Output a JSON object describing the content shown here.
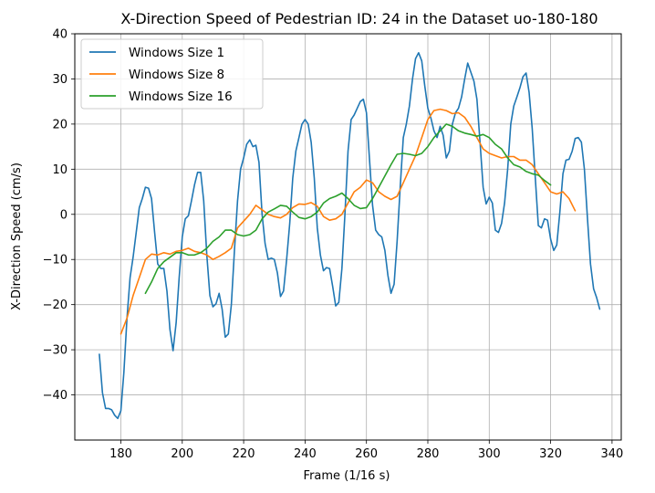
{
  "chart_data": {
    "type": "line",
    "title": "X-Direction Speed of Pedestrian ID: 24 in the Dataset uo-180-180",
    "xlabel": "Frame (1/16 s)",
    "ylabel": "X-Direction Speed (cm/s)",
    "xlim": [
      165,
      343
    ],
    "ylim": [
      -50,
      40
    ],
    "xticks": [
      180,
      200,
      220,
      240,
      260,
      280,
      300,
      320,
      340
    ],
    "yticks": [
      -40,
      -30,
      -20,
      -10,
      0,
      10,
      20,
      30,
      40
    ],
    "grid": true,
    "legend": "top-left",
    "series": [
      {
        "name": "Windows Size 1",
        "color": "#1f77b4",
        "points": [
          [
            173,
            -31
          ],
          [
            174,
            -39.5
          ],
          [
            175,
            -43
          ],
          [
            176,
            -43
          ],
          [
            177,
            -43.3
          ],
          [
            178,
            -44.5
          ],
          [
            179,
            -45.2
          ],
          [
            180,
            -43.5
          ],
          [
            181,
            -35
          ],
          [
            182,
            -23
          ],
          [
            183,
            -14
          ],
          [
            184,
            -9.5
          ],
          [
            185,
            -4
          ],
          [
            186,
            1.5
          ],
          [
            187,
            3.5
          ],
          [
            188,
            6
          ],
          [
            189,
            5.8
          ],
          [
            190,
            3.5
          ],
          [
            191,
            -4
          ],
          [
            192,
            -11
          ],
          [
            193,
            -12
          ],
          [
            194,
            -12
          ],
          [
            195,
            -17
          ],
          [
            196,
            -25.5
          ],
          [
            197,
            -30.2
          ],
          [
            198,
            -24
          ],
          [
            199,
            -14
          ],
          [
            200,
            -5
          ],
          [
            201,
            -1
          ],
          [
            202,
            -0.3
          ],
          [
            203,
            3
          ],
          [
            204,
            6.5
          ],
          [
            205,
            9.3
          ],
          [
            206,
            9.3
          ],
          [
            207,
            3
          ],
          [
            208,
            -9
          ],
          [
            209,
            -18
          ],
          [
            210,
            -20.5
          ],
          [
            211,
            -19.8
          ],
          [
            212,
            -17.5
          ],
          [
            213,
            -21
          ],
          [
            214,
            -27.2
          ],
          [
            215,
            -26.5
          ],
          [
            216,
            -20
          ],
          [
            217,
            -8
          ],
          [
            218,
            3
          ],
          [
            219,
            10
          ],
          [
            220,
            12.5
          ],
          [
            221,
            15.5
          ],
          [
            222,
            16.5
          ],
          [
            223,
            15
          ],
          [
            224,
            15.3
          ],
          [
            225,
            11.5
          ],
          [
            226,
            0
          ],
          [
            227,
            -6.5
          ],
          [
            228,
            -10
          ],
          [
            229,
            -9.7
          ],
          [
            230,
            -10
          ],
          [
            231,
            -13
          ],
          [
            232,
            -18.2
          ],
          [
            233,
            -17
          ],
          [
            234,
            -10
          ],
          [
            235,
            -2
          ],
          [
            236,
            8
          ],
          [
            237,
            14
          ],
          [
            238,
            17
          ],
          [
            239,
            20
          ],
          [
            240,
            21
          ],
          [
            241,
            20
          ],
          [
            242,
            16
          ],
          [
            243,
            8
          ],
          [
            244,
            -3
          ],
          [
            245,
            -9
          ],
          [
            246,
            -12.5
          ],
          [
            247,
            -11.8
          ],
          [
            248,
            -12
          ],
          [
            249,
            -16
          ],
          [
            250,
            -20.3
          ],
          [
            251,
            -19.5
          ],
          [
            252,
            -12
          ],
          [
            253,
            0
          ],
          [
            254,
            14
          ],
          [
            255,
            21
          ],
          [
            256,
            22
          ],
          [
            257,
            23.5
          ],
          [
            258,
            25
          ],
          [
            259,
            25.5
          ],
          [
            260,
            22.5
          ],
          [
            261,
            12
          ],
          [
            262,
            2
          ],
          [
            263,
            -3.5
          ],
          [
            264,
            -4.5
          ],
          [
            265,
            -5
          ],
          [
            266,
            -8
          ],
          [
            267,
            -13.5
          ],
          [
            268,
            -17.5
          ],
          [
            269,
            -15.5
          ],
          [
            270,
            -6
          ],
          [
            271,
            6
          ],
          [
            272,
            17
          ],
          [
            273,
            20
          ],
          [
            274,
            24
          ],
          [
            275,
            30
          ],
          [
            276,
            34.5
          ],
          [
            277,
            35.8
          ],
          [
            278,
            34
          ],
          [
            279,
            28.5
          ],
          [
            280,
            23.5
          ],
          [
            281,
            21.3
          ],
          [
            282,
            18.5
          ],
          [
            283,
            17
          ],
          [
            284,
            19.5
          ],
          [
            285,
            17.5
          ],
          [
            286,
            12.5
          ],
          [
            287,
            14
          ],
          [
            288,
            20
          ],
          [
            289,
            22.5
          ],
          [
            290,
            23.5
          ],
          [
            291,
            26
          ],
          [
            292,
            30
          ],
          [
            293,
            33.5
          ],
          [
            294,
            31.5
          ],
          [
            295,
            29.5
          ],
          [
            296,
            25.5
          ],
          [
            297,
            16
          ],
          [
            298,
            6
          ],
          [
            299,
            2.3
          ],
          [
            300,
            3.8
          ],
          [
            301,
            2.5
          ],
          [
            302,
            -3.5
          ],
          [
            303,
            -4
          ],
          [
            304,
            -2
          ],
          [
            305,
            2.5
          ],
          [
            306,
            10
          ],
          [
            307,
            20
          ],
          [
            308,
            24
          ],
          [
            309,
            26
          ],
          [
            310,
            28
          ],
          [
            311,
            30.5
          ],
          [
            312,
            31.3
          ],
          [
            313,
            27
          ],
          [
            314,
            19
          ],
          [
            315,
            8
          ],
          [
            316,
            -2.5
          ],
          [
            317,
            -3
          ],
          [
            318,
            -1
          ],
          [
            319,
            -1.3
          ],
          [
            320,
            -5.5
          ],
          [
            321,
            -8
          ],
          [
            322,
            -6.8
          ],
          [
            323,
            0.5
          ],
          [
            324,
            9
          ],
          [
            325,
            12
          ],
          [
            326,
            12.2
          ],
          [
            327,
            14
          ],
          [
            328,
            16.8
          ],
          [
            329,
            17
          ],
          [
            330,
            16
          ],
          [
            331,
            10
          ],
          [
            332,
            -1
          ],
          [
            333,
            -11
          ],
          [
            334,
            -16.5
          ],
          [
            335,
            -18.5
          ],
          [
            336,
            -21
          ]
        ]
      },
      {
        "name": "Windows Size 8",
        "color": "#ff7f0e",
        "points": [
          [
            180,
            -26.5
          ],
          [
            182,
            -23
          ],
          [
            184,
            -18
          ],
          [
            186,
            -14
          ],
          [
            188,
            -10
          ],
          [
            190,
            -8.8
          ],
          [
            192,
            -9
          ],
          [
            194,
            -8.5
          ],
          [
            196,
            -8.8
          ],
          [
            198,
            -8.2
          ],
          [
            200,
            -8
          ],
          [
            202,
            -7.5
          ],
          [
            204,
            -8.2
          ],
          [
            206,
            -8.5
          ],
          [
            208,
            -9
          ],
          [
            210,
            -10
          ],
          [
            212,
            -9.3
          ],
          [
            214,
            -8.5
          ],
          [
            216,
            -7.5
          ],
          [
            218,
            -3
          ],
          [
            220,
            -1.5
          ],
          [
            222,
            0
          ],
          [
            224,
            2
          ],
          [
            226,
            1
          ],
          [
            228,
            0
          ],
          [
            230,
            -0.5
          ],
          [
            232,
            -0.8
          ],
          [
            234,
            0
          ],
          [
            236,
            1.5
          ],
          [
            238,
            2.3
          ],
          [
            240,
            2.2
          ],
          [
            242,
            2.6
          ],
          [
            244,
            1.8
          ],
          [
            246,
            -0.5
          ],
          [
            248,
            -1.3
          ],
          [
            250,
            -1
          ],
          [
            252,
            0
          ],
          [
            254,
            2.5
          ],
          [
            256,
            5
          ],
          [
            258,
            6
          ],
          [
            260,
            7.6
          ],
          [
            262,
            7
          ],
          [
            264,
            5
          ],
          [
            266,
            4
          ],
          [
            268,
            3.3
          ],
          [
            270,
            4
          ],
          [
            272,
            7
          ],
          [
            274,
            10
          ],
          [
            276,
            13
          ],
          [
            278,
            17
          ],
          [
            280,
            21
          ],
          [
            282,
            23
          ],
          [
            284,
            23.3
          ],
          [
            286,
            23
          ],
          [
            288,
            22.3
          ],
          [
            290,
            22.5
          ],
          [
            292,
            21.5
          ],
          [
            294,
            19.5
          ],
          [
            296,
            17
          ],
          [
            298,
            14.5
          ],
          [
            300,
            13.5
          ],
          [
            302,
            13
          ],
          [
            304,
            12.5
          ],
          [
            306,
            12.8
          ],
          [
            308,
            12.8
          ],
          [
            310,
            12
          ],
          [
            312,
            12
          ],
          [
            314,
            11
          ],
          [
            316,
            9
          ],
          [
            318,
            7
          ],
          [
            320,
            5
          ],
          [
            322,
            4.5
          ],
          [
            324,
            5
          ],
          [
            326,
            3.5
          ],
          [
            328,
            0.8
          ]
        ]
      },
      {
        "name": "Windows Size 16",
        "color": "#2ca02c",
        "points": [
          [
            188,
            -17.5
          ],
          [
            190,
            -15
          ],
          [
            192,
            -12
          ],
          [
            194,
            -10.5
          ],
          [
            196,
            -9.5
          ],
          [
            198,
            -8.5
          ],
          [
            200,
            -8.5
          ],
          [
            202,
            -9
          ],
          [
            204,
            -9
          ],
          [
            206,
            -8.5
          ],
          [
            208,
            -7.5
          ],
          [
            210,
            -6
          ],
          [
            212,
            -5
          ],
          [
            214,
            -3.5
          ],
          [
            216,
            -3.5
          ],
          [
            218,
            -4.5
          ],
          [
            220,
            -4.8
          ],
          [
            222,
            -4.5
          ],
          [
            224,
            -3.5
          ],
          [
            226,
            -1
          ],
          [
            228,
            0.5
          ],
          [
            230,
            1.2
          ],
          [
            232,
            2
          ],
          [
            234,
            1.8
          ],
          [
            236,
            0.5
          ],
          [
            238,
            -0.7
          ],
          [
            240,
            -1
          ],
          [
            242,
            -0.5
          ],
          [
            244,
            0.5
          ],
          [
            246,
            2.5
          ],
          [
            248,
            3.5
          ],
          [
            250,
            4
          ],
          [
            252,
            4.7
          ],
          [
            254,
            3.5
          ],
          [
            256,
            2
          ],
          [
            258,
            1.3
          ],
          [
            260,
            1.5
          ],
          [
            262,
            3.5
          ],
          [
            264,
            6
          ],
          [
            266,
            8.5
          ],
          [
            268,
            11
          ],
          [
            270,
            13.3
          ],
          [
            272,
            13.5
          ],
          [
            274,
            13.3
          ],
          [
            276,
            13
          ],
          [
            278,
            13.5
          ],
          [
            280,
            15
          ],
          [
            282,
            17
          ],
          [
            284,
            18.5
          ],
          [
            286,
            20
          ],
          [
            288,
            19.5
          ],
          [
            290,
            18.5
          ],
          [
            292,
            18
          ],
          [
            294,
            17.7
          ],
          [
            296,
            17.3
          ],
          [
            298,
            17.7
          ],
          [
            300,
            17
          ],
          [
            302,
            15.5
          ],
          [
            304,
            14.5
          ],
          [
            306,
            12.5
          ],
          [
            308,
            11
          ],
          [
            310,
            10.5
          ],
          [
            312,
            9.5
          ],
          [
            314,
            9
          ],
          [
            316,
            8.7
          ],
          [
            318,
            7.5
          ],
          [
            320,
            6.5
          ]
        ]
      }
    ]
  }
}
